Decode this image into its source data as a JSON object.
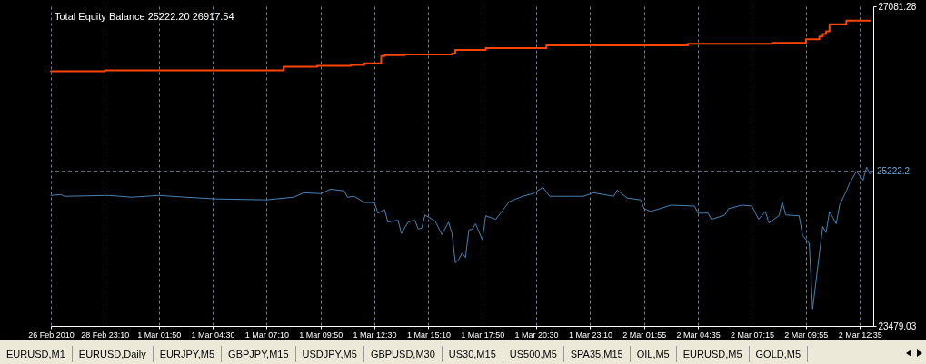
{
  "chart_data": {
    "type": "line",
    "title": "Total Equity Balance 25222.20 26917.54",
    "categories": [
      "26 Feb 2010",
      null,
      null,
      null,
      null,
      null,
      null,
      null,
      null,
      null,
      null,
      null,
      null,
      null,
      null,
      null,
      "28 Feb 23:10",
      null,
      null,
      null,
      null,
      null,
      null,
      null,
      null,
      null,
      null,
      null,
      null,
      null,
      null,
      null,
      "1 Mar 01:50",
      null,
      null,
      null,
      null,
      null,
      null,
      null,
      null,
      null,
      null,
      null,
      null,
      null,
      null,
      null,
      "1 Mar 04:30",
      null,
      null,
      null,
      null,
      null,
      null,
      null,
      null,
      null,
      null,
      null,
      null,
      null,
      null,
      null,
      "1 Mar 07:10",
      null,
      null,
      null,
      null,
      null,
      null,
      null,
      null,
      null,
      null,
      null,
      null,
      null,
      null,
      null,
      "1 Mar 09:50",
      null,
      null,
      null,
      null,
      null,
      null,
      null,
      null,
      null,
      null,
      null,
      null,
      null,
      null,
      null,
      "1 Mar 12:30",
      null,
      null,
      null,
      null,
      null,
      null,
      null,
      null,
      null,
      null,
      null,
      null,
      null,
      null,
      null,
      "1 Mar 15:10",
      null,
      null,
      null,
      null,
      null,
      null,
      null,
      null,
      null,
      null,
      null,
      null,
      null,
      null,
      null,
      "1 Mar 17:50",
      null,
      null,
      null,
      null,
      null,
      null,
      null,
      null,
      null,
      null,
      null,
      null,
      null,
      null,
      null,
      "1 Mar 20:30",
      null,
      null,
      null,
      null,
      null,
      null,
      null,
      null,
      null,
      null,
      null,
      null,
      null,
      null,
      null,
      "1 Mar 23:10",
      null,
      null,
      null,
      null,
      null,
      null,
      null,
      null,
      null,
      null,
      null,
      null,
      null,
      null,
      null,
      "2 Mar 01:55",
      null,
      null,
      null,
      null,
      null,
      null,
      null,
      null,
      null,
      null,
      null,
      null,
      null,
      null,
      null,
      "2 Mar 04:35",
      null,
      null,
      null,
      null,
      null,
      null,
      null,
      null,
      null,
      null,
      null,
      null,
      null,
      null,
      null,
      "2 Mar 07:15",
      null,
      null,
      null,
      null,
      null,
      null,
      null,
      null,
      null,
      null,
      null,
      null,
      null,
      null,
      null,
      "2 Mar 09:55",
      null,
      null,
      null,
      null,
      null,
      null,
      null,
      null,
      null,
      null,
      null,
      null,
      null,
      null,
      null,
      "2 Mar 12:35",
      null,
      null,
      null,
      null
    ],
    "ylim": [
      23479.03,
      27081.28
    ],
    "yticks": [
      23479.03,
      27081.28
    ],
    "grid": "x",
    "series": [
      {
        "type": "step",
        "color": "#ff4500",
        "values": [
          26350,
          null,
          null,
          null,
          null,
          null,
          null,
          null,
          null,
          null,
          null,
          null,
          null,
          null,
          null,
          null,
          26360,
          null,
          null,
          null,
          null,
          null,
          null,
          null,
          null,
          null,
          null,
          null,
          null,
          null,
          null,
          null,
          null,
          null,
          null,
          null,
          null,
          null,
          null,
          null,
          null,
          null,
          null,
          null,
          null,
          null,
          null,
          null,
          null,
          null,
          null,
          null,
          null,
          null,
          null,
          null,
          null,
          null,
          null,
          null,
          null,
          null,
          null,
          null,
          null,
          null,
          null,
          null,
          null,
          26400,
          null,
          null,
          null,
          null,
          null,
          null,
          null,
          null,
          null,
          26410,
          null,
          null,
          null,
          null,
          null,
          null,
          null,
          null,
          null,
          26420,
          null,
          null,
          null,
          26440,
          null,
          null,
          null,
          null,
          26520,
          26530,
          null,
          null,
          null,
          null,
          null,
          26540,
          null,
          null,
          null,
          null,
          null,
          null,
          null,
          null,
          null,
          null,
          null,
          null,
          null,
          26550,
          26590,
          null,
          null,
          null,
          null,
          null,
          null,
          null,
          null,
          26610,
          null,
          null,
          null,
          null,
          null,
          null,
          null,
          null,
          null,
          null,
          null,
          null,
          null,
          null,
          null,
          null,
          null,
          26640,
          null,
          null,
          null,
          null,
          null,
          null,
          null,
          null,
          null,
          null,
          null,
          null,
          null,
          null,
          null,
          null,
          null,
          null,
          null,
          null,
          null,
          null,
          null,
          null,
          null,
          null,
          null,
          null,
          null,
          null,
          null,
          null,
          null,
          null,
          null,
          null,
          null,
          null,
          null,
          null,
          null,
          26660,
          null,
          null,
          null,
          null,
          null,
          null,
          null,
          null,
          null,
          null,
          null,
          null,
          null,
          null,
          null,
          null,
          null,
          null,
          null,
          null,
          null,
          null,
          null,
          null,
          26670,
          null,
          null,
          null,
          null,
          null,
          null,
          null,
          null,
          null,
          26710,
          null,
          null,
          null,
          26740,
          26770,
          26800,
          26880,
          null,
          null,
          null,
          null,
          26920,
          null,
          null,
          null,
          null,
          null,
          null,
          26920,
          null
        ]
      },
      {
        "color": "#4682b4",
        "values": [
          24950,
          null,
          null,
          24960,
          24940,
          null,
          null,
          null,
          null,
          null,
          null,
          null,
          null,
          null,
          null,
          null,
          null,
          24950,
          null,
          null,
          null,
          null,
          null,
          null,
          24930,
          null,
          null,
          null,
          null,
          null,
          null,
          null,
          24950,
          null,
          null,
          null,
          null,
          null,
          null,
          null,
          24930,
          null,
          null,
          null,
          null,
          null,
          null,
          null,
          null,
          24910,
          null,
          null,
          null,
          null,
          null,
          null,
          null,
          null,
          null,
          null,
          null,
          null,
          null,
          null,
          24900,
          null,
          null,
          null,
          null,
          null,
          null,
          null,
          24930,
          null,
          null,
          24980,
          null,
          null,
          null,
          null,
          24970,
          null,
          null,
          25020,
          null,
          null,
          null,
          25000,
          24930,
          null,
          24940,
          null,
          null,
          24870,
          null,
          null,
          24870,
          24750,
          null,
          24790,
          24650,
          null,
          null,
          24670,
          24520,
          null,
          24650,
          null,
          24670,
          24570,
          24580,
          24730,
          null,
          null,
          24660,
          null,
          24510,
          null,
          24650,
          24520,
          24190,
          24230,
          24300,
          24250,
          24560,
          24570,
          24630,
          null,
          24450,
          24720,
          null,
          null,
          24680,
          null,
          null,
          null,
          24880,
          null,
          null,
          null,
          24940,
          null,
          null,
          24970,
          null,
          null,
          25040,
          null,
          24940,
          null,
          null,
          null,
          24940,
          null,
          null,
          null,
          null,
          null,
          24940,
          null,
          null,
          24980,
          null,
          null,
          null,
          null,
          null,
          24940,
          25010,
          null,
          null,
          24920,
          null,
          null,
          null,
          24900,
          24800,
          null,
          24770,
          null,
          null,
          null,
          null,
          null,
          24840,
          null,
          null,
          null,
          null,
          null,
          null,
          24830,
          24750,
          null,
          null,
          24750,
          24680,
          null,
          null,
          null,
          24730,
          24800,
          null,
          null,
          null,
          24840,
          null,
          null,
          24830,
          null,
          24680,
          null,
          24770,
          24640,
          null,
          null,
          24720,
          24880,
          24730,
          null,
          null,
          null,
          24720,
          24500,
          null,
          24410,
          23670,
          null,
          24290,
          24600,
          24530,
          24770,
          null,
          24630,
          24840,
          null,
          25000,
          25090,
          null,
          25220,
          null,
          25120,
          25270,
          25190,
          25220
        ]
      }
    ],
    "ref_lines": [
      {
        "axis": "y",
        "value": 25222.2,
        "label": "25222.2",
        "color": "#708090",
        "line_style": "dashed"
      }
    ],
    "annotations": [
      "EURUSD,M1",
      "EURUSD,Daily",
      "EURJPY,M5",
      "GBPJPY,M15",
      "USDJPY,M5",
      "GBPUSD,M30",
      "US30,M15",
      "US500,M5",
      "SPA35,M15",
      "OIL,M5",
      "EURUSD,M5",
      "GOLD,M5"
    ]
  }
}
